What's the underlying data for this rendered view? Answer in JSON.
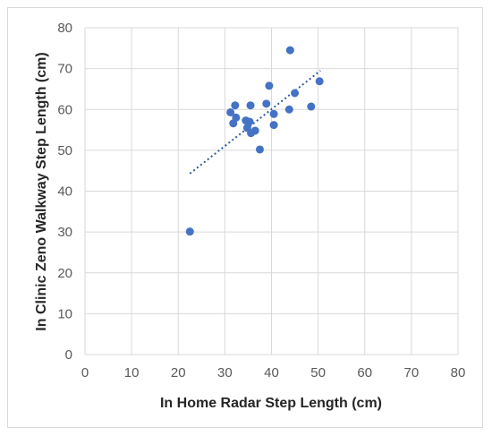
{
  "chart_data": {
    "type": "scatter",
    "title": "",
    "xlabel": "In Home Radar Step Length (cm)",
    "ylabel": "In Clinic Zeno Walkway Step Length (cm)",
    "xlim": [
      0,
      80
    ],
    "ylim": [
      0,
      80
    ],
    "xticks": [
      0,
      10,
      20,
      30,
      40,
      50,
      60,
      70,
      80
    ],
    "yticks": [
      0,
      10,
      20,
      30,
      40,
      50,
      60,
      70,
      80
    ],
    "grid": true,
    "legend": "none",
    "marker_color": "#4472c4",
    "trendline": {
      "type": "linear",
      "style": "dotted",
      "color": "#2e5c9a",
      "x": [
        22.5,
        50.5
      ],
      "y": [
        44.3,
        69.5
      ]
    },
    "series": [
      {
        "points": [
          {
            "x": 22.5,
            "y": 30.1
          },
          {
            "x": 31.2,
            "y": 59.3
          },
          {
            "x": 31.8,
            "y": 56.6
          },
          {
            "x": 32.2,
            "y": 61.0
          },
          {
            "x": 32.4,
            "y": 58.0
          },
          {
            "x": 34.5,
            "y": 57.3
          },
          {
            "x": 34.8,
            "y": 55.5
          },
          {
            "x": 35.3,
            "y": 57.0
          },
          {
            "x": 35.5,
            "y": 61.0
          },
          {
            "x": 35.6,
            "y": 54.2
          },
          {
            "x": 36.5,
            "y": 54.8
          },
          {
            "x": 37.5,
            "y": 50.2
          },
          {
            "x": 38.9,
            "y": 61.4
          },
          {
            "x": 39.5,
            "y": 65.8
          },
          {
            "x": 40.5,
            "y": 58.9
          },
          {
            "x": 40.5,
            "y": 56.2
          },
          {
            "x": 43.8,
            "y": 60.0
          },
          {
            "x": 44.0,
            "y": 74.5
          },
          {
            "x": 45.0,
            "y": 64.0
          },
          {
            "x": 48.5,
            "y": 60.7
          },
          {
            "x": 50.3,
            "y": 66.9
          }
        ]
      }
    ]
  }
}
